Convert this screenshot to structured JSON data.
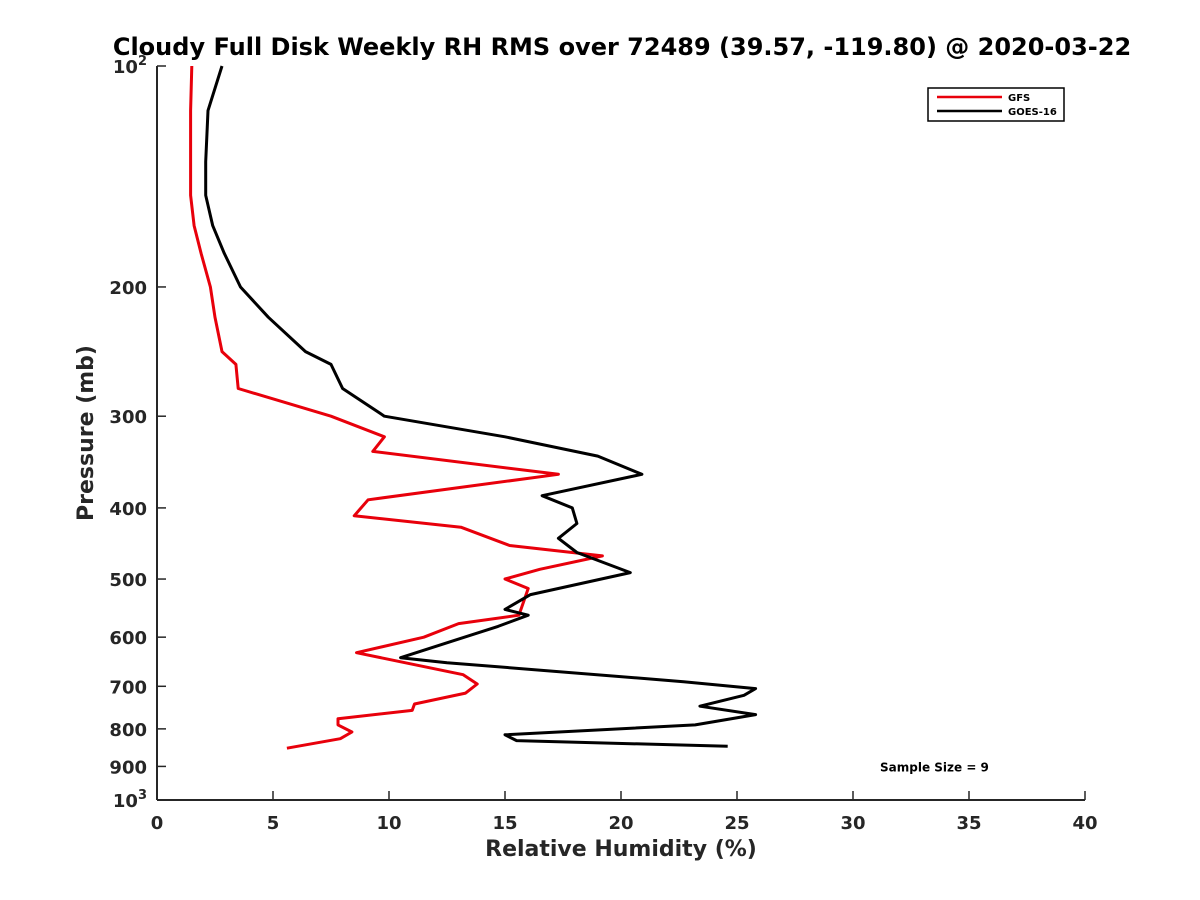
{
  "chart_data": {
    "type": "line",
    "title": "Cloudy Full Disk Weekly RH RMS over 72489 (39.57, -119.80) @ 2020-03-22",
    "xlabel": "Relative Humidity (%)",
    "ylabel": "Pressure (mb)",
    "xlim": [
      0,
      40
    ],
    "ylim": [
      100,
      1000
    ],
    "y_scale": "log",
    "y_reversed": true,
    "grid": false,
    "legend_position": "top-right",
    "x_ticks": [
      0,
      5,
      10,
      15,
      20,
      25,
      30,
      35,
      40
    ],
    "x_tick_labels": [
      "0",
      "5",
      "10",
      "15",
      "20",
      "25",
      "30",
      "35",
      "40"
    ],
    "y_ticks": [
      {
        "value": 100,
        "base": "10",
        "sup": "2"
      },
      {
        "value": 200,
        "base": "200",
        "sup": ""
      },
      {
        "value": 300,
        "base": "300",
        "sup": ""
      },
      {
        "value": 400,
        "base": "400",
        "sup": ""
      },
      {
        "value": 500,
        "base": "500",
        "sup": ""
      },
      {
        "value": 600,
        "base": "600",
        "sup": ""
      },
      {
        "value": 700,
        "base": "700",
        "sup": ""
      },
      {
        "value": 800,
        "base": "800",
        "sup": ""
      },
      {
        "value": 900,
        "base": "900",
        "sup": ""
      },
      {
        "value": 1000,
        "base": "10",
        "sup": "3"
      }
    ],
    "annotations": [
      {
        "text": "Sample Size = 9",
        "x": 35,
        "y": 900
      }
    ],
    "series": [
      {
        "name": "GFS",
        "color": "#e8000b",
        "points": [
          [
            1.5,
            100
          ],
          [
            1.45,
            115
          ],
          [
            1.45,
            135
          ],
          [
            1.45,
            150
          ],
          [
            1.6,
            165
          ],
          [
            1.9,
            180
          ],
          [
            2.3,
            200
          ],
          [
            2.5,
            220
          ],
          [
            2.8,
            245
          ],
          [
            3.4,
            255
          ],
          [
            3.5,
            275
          ],
          [
            7.5,
            300
          ],
          [
            9.8,
            320
          ],
          [
            9.3,
            335
          ],
          [
            17.3,
            360
          ],
          [
            9.1,
            390
          ],
          [
            8.5,
            410
          ],
          [
            13.1,
            425
          ],
          [
            15.2,
            450
          ],
          [
            19.2,
            465
          ],
          [
            16.5,
            485
          ],
          [
            15.0,
            500
          ],
          [
            16.0,
            515
          ],
          [
            15.6,
            560
          ],
          [
            13.0,
            575
          ],
          [
            11.5,
            600
          ],
          [
            8.6,
            630
          ],
          [
            13.2,
            675
          ],
          [
            13.8,
            695
          ],
          [
            13.3,
            715
          ],
          [
            11.1,
            740
          ],
          [
            11.0,
            755
          ],
          [
            7.8,
            775
          ],
          [
            7.8,
            790
          ],
          [
            8.4,
            808
          ],
          [
            7.9,
            825
          ],
          [
            5.6,
            850
          ]
        ]
      },
      {
        "name": "GOES-16",
        "color": "#000000",
        "points": [
          [
            2.8,
            100
          ],
          [
            2.2,
            115
          ],
          [
            2.1,
            135
          ],
          [
            2.1,
            150
          ],
          [
            2.4,
            165
          ],
          [
            2.9,
            180
          ],
          [
            3.6,
            200
          ],
          [
            4.8,
            220
          ],
          [
            6.4,
            245
          ],
          [
            7.5,
            255
          ],
          [
            8.0,
            275
          ],
          [
            9.8,
            300
          ],
          [
            15.0,
            320
          ],
          [
            19.0,
            340
          ],
          [
            20.9,
            360
          ],
          [
            16.6,
            385
          ],
          [
            17.9,
            400
          ],
          [
            18.1,
            420
          ],
          [
            17.3,
            440
          ],
          [
            18.1,
            460
          ],
          [
            20.4,
            490
          ],
          [
            16.1,
            525
          ],
          [
            15.0,
            550
          ],
          [
            16.0,
            560
          ],
          [
            14.7,
            580
          ],
          [
            10.5,
            640
          ],
          [
            12.5,
            650
          ],
          [
            22.7,
            690
          ],
          [
            25.8,
            705
          ],
          [
            25.3,
            720
          ],
          [
            23.4,
            745
          ],
          [
            25.8,
            765
          ],
          [
            23.2,
            790
          ],
          [
            15.0,
            815
          ],
          [
            15.5,
            830
          ],
          [
            24.6,
            845
          ]
        ]
      }
    ]
  }
}
